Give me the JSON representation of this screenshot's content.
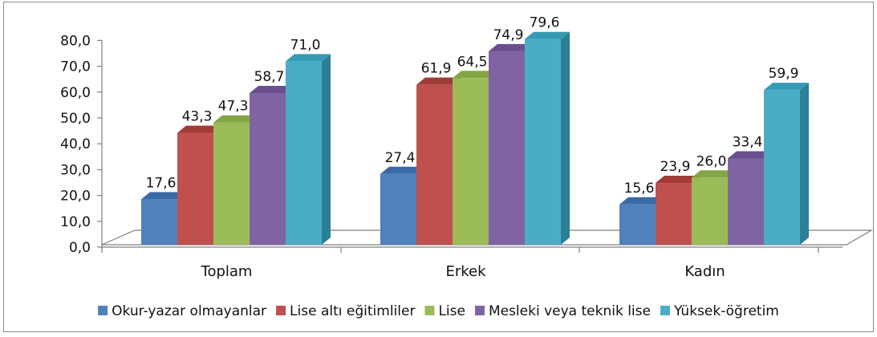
{
  "chart_data": {
    "type": "bar",
    "style": "3d-clustered",
    "categories": [
      "Toplam",
      "Erkek",
      "Kadın"
    ],
    "series": [
      {
        "name": "Okur-yazar olmayanlar",
        "values": [
          "17,6",
          "27,4",
          "15,6"
        ]
      },
      {
        "name": "Lise altı eğitimliler",
        "values": [
          "43,3",
          "61,9",
          "23,9"
        ]
      },
      {
        "name": "Lise",
        "values": [
          "47,3",
          "64,5",
          "26,0"
        ]
      },
      {
        "name": "Mesleki veya teknik lise",
        "values": [
          "58,7",
          "74,9",
          "33,4"
        ]
      },
      {
        "name": "Yüksek-öğretim",
        "values": [
          "71,0",
          "79,6",
          "59,9"
        ]
      }
    ],
    "yticks": [
      "0,0",
      "10,0",
      "20,0",
      "30,0",
      "40,0",
      "50,0",
      "60,0",
      "70,0",
      "80,0"
    ],
    "ylim": [
      0,
      80
    ],
    "legend_position": "bottom",
    "colors": [
      "#4f81bd",
      "#c0504d",
      "#9bbb59",
      "#8064a2",
      "#4bacc6"
    ],
    "side_colors": [
      "#2c5485",
      "#8a2a28",
      "#6b8a2e",
      "#54407a",
      "#2b7f96"
    ],
    "top_colors": [
      "#3a6aa6",
      "#a23a37",
      "#84a545",
      "#6a4f8f",
      "#379ab5"
    ]
  }
}
